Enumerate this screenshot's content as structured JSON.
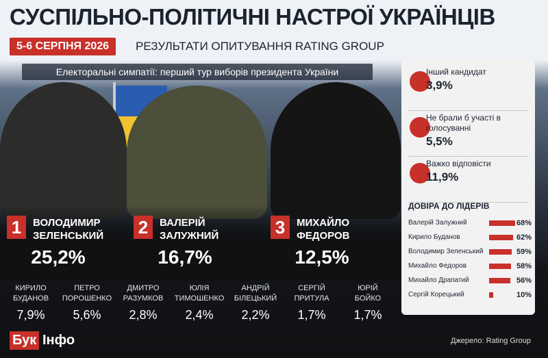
{
  "header": {
    "title": "СУСПІЛЬНО-ПОЛІТИЧНІ НАСТРОЇ УКРАЇНЦІВ",
    "date": "5-6 СЕРПНЯ 2026",
    "subtitle": "РЕЗУЛЬТАТИ ОПИТУВАННЯ RATING GROUP"
  },
  "banner": "Електоральні симпатії: перший тур виборів президента України",
  "leaders": [
    {
      "rank": "1",
      "first": "ВОЛОДИМИР",
      "last": "ЗЕЛЕНСЬКИЙ",
      "result": "25,2%"
    },
    {
      "rank": "2",
      "first": "ВАЛЕРІЙ",
      "last": "ЗАЛУЖНИЙ",
      "result": "16,7%"
    },
    {
      "rank": "3",
      "first": "МИХАЙЛО",
      "last": "ФЕДОРОВ",
      "result": "12,5%"
    }
  ],
  "others": [
    {
      "first": "КИРИЛО",
      "last": "БУДАНОВ",
      "result": "7,9%"
    },
    {
      "first": "ПЕТРО",
      "last": "ПОРОШЕНКО",
      "result": "5,6%"
    },
    {
      "first": "ДМИТРО",
      "last": "РАЗУМКОВ",
      "result": "2,8%"
    },
    {
      "first": "ЮЛІЯ",
      "last": "ТИМОШЕНКО",
      "result": "2,4%"
    },
    {
      "first": "АНДРІЙ",
      "last": "БІЛЕЦЬКИЙ",
      "result": "2,2%"
    },
    {
      "first": "СЕРГІЙ",
      "last": "ПРИТУЛА",
      "result": "1,7%"
    },
    {
      "first": "ЮРІЙ",
      "last": "БОЙКО",
      "result": "1,7%"
    }
  ],
  "side": [
    {
      "label": "Інший кандидат",
      "result": "3,9%"
    },
    {
      "label": "Не брали б участі в голосуванні",
      "result": "5,5%"
    },
    {
      "label": "Важко відповісти",
      "result": "11,9%"
    }
  ],
  "trust": {
    "title": "ДОВІРА ДО ЛІДЕРІВ",
    "names": [
      "Валерій Залужний",
      "Кирило Буданов",
      "Володимир Зеленський",
      "Михайло Федоров",
      "Михайло Драпатий",
      "Сергій Корецький"
    ],
    "values": [
      68,
      62,
      59,
      58,
      56,
      10
    ],
    "value_labels": [
      "68%",
      "62%",
      "59%",
      "58%",
      "56%",
      "10%"
    ],
    "color": "#c8302a"
  },
  "footer": {
    "logo_a": "Бук",
    "logo_b": "Інфо",
    "source": "Джерело: Rating Group"
  }
}
